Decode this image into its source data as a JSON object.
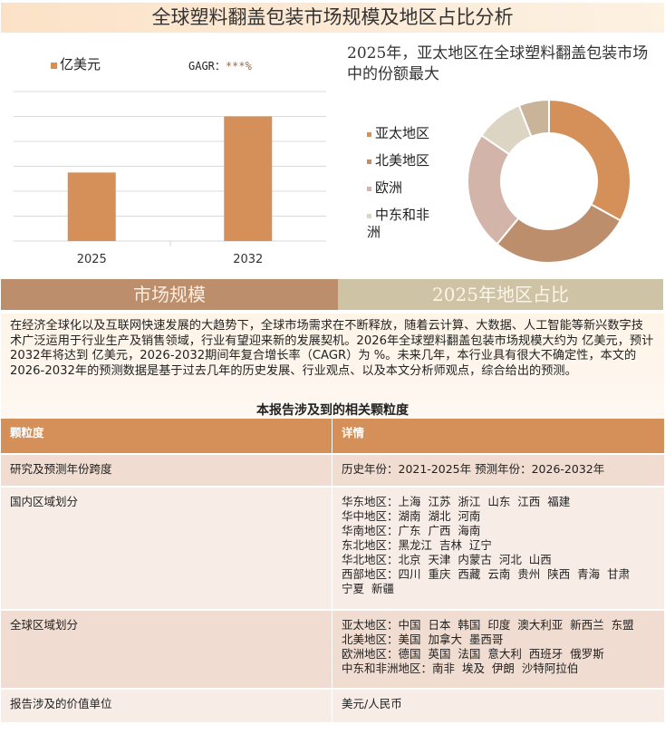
{
  "title": "全球塑料翻盖包装市场规模及地区占比分析",
  "bar_legend": "亿美元",
  "cagr_label": "GAGR：",
  "cagr_value": "***%",
  "chart_data": [
    {
      "type": "bar",
      "categories": [
        "2025",
        "2032"
      ],
      "values": [
        2.75,
        5.0
      ],
      "series_name": "亿美元",
      "color": "#d49058",
      "grid": true,
      "ylim": [
        0,
        6
      ]
    },
    {
      "type": "pie",
      "title": "2025年，亚太地区在全球塑料翻盖包装市场中的份额最大",
      "donut": true,
      "labels": [
        "亚太地区",
        "北美地区",
        "欧洲",
        "中东和非洲",
        ""
      ],
      "values": [
        33,
        28,
        23.5,
        9.5,
        6
      ],
      "colors": [
        "#d49058",
        "#bc8e6c",
        "#d2b4a8",
        "#ddd5c4",
        "#c9b49a"
      ],
      "legend": "left"
    }
  ],
  "tabs": {
    "market": "市场规模",
    "region": "2025年地区占比"
  },
  "description": "在经济全球化以及互联网快速发展的大趋势下，全球市场需求在不断释放，随着云计算、大数据、人工智能等新兴数字技术广泛运用于行业生产及销售领域，行业有望迎来新的发展契机。2026年全球塑料翻盖包装市场规模大约为 亿美元，预计2032年将达到 亿美元，2026-2032期间年复合增长率（CAGR）为 %。未来几年，本行业具有很大不确定性，本文的2026-2032年的预测数据是基于过去几年的历史发展、行业观点、以及本文分析师观点，综合给出的预测。",
  "table_title": "本报告涉及到的相关颗粒度",
  "table": {
    "headers": [
      "颗粒度",
      "详情"
    ],
    "rows": [
      {
        "label": "研究及预测年份跨度",
        "lines": [
          "历史年份：2021-2025年 预测年份：2026-2032年"
        ]
      },
      {
        "label": "国内区域划分",
        "lines": [
          "华东地区：上海  江苏  浙江  山东  江西  福建",
          "华中地区：湖南  湖北  河南",
          "华南地区：广东  广西  海南",
          "东北地区：黑龙江  吉林  辽宁",
          "华北地区：北京  天津  内蒙古  河北  山西",
          "西部地区：四川  重庆  西藏  云南  贵州  陕西  青海  甘肃",
          "宁夏  新疆"
        ]
      },
      {
        "label": "全球区域划分",
        "lines": [
          "亚太地区：中国  日本  韩国  印度  澳大利亚  新西兰  东盟",
          "北美地区：美国  加拿大  墨西哥",
          "欧洲地区：德国  英国  法国  意大利  西班牙  俄罗斯",
          "中东和非洲地区：南非  埃及  伊朗  沙特阿拉伯"
        ]
      },
      {
        "label": "报告涉及的价值单位",
        "lines": [
          "美元/人民币"
        ]
      }
    ]
  }
}
